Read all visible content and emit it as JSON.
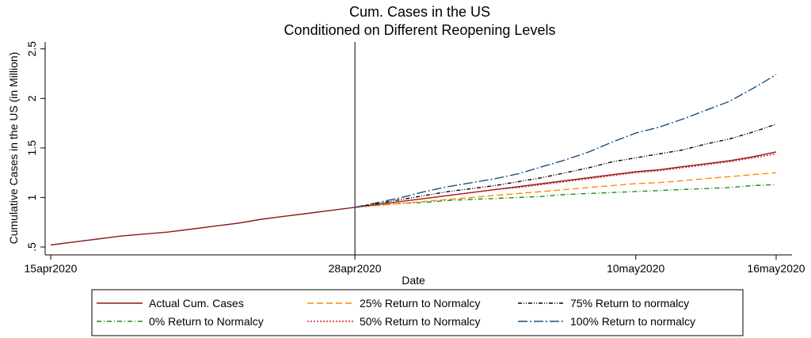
{
  "chart_data": {
    "type": "line",
    "title": [
      "Cum. Cases in the US",
      "Conditioned on Different Reopening Levels"
    ],
    "xlabel": "Date",
    "ylabel": "Cumulative Cases in the US (in Million)",
    "x": [
      "2020-04-15",
      "2020-04-16",
      "2020-04-17",
      "2020-04-18",
      "2020-04-19",
      "2020-04-20",
      "2020-04-21",
      "2020-04-22",
      "2020-04-23",
      "2020-04-24",
      "2020-04-25",
      "2020-04-26",
      "2020-04-27",
      "2020-04-28",
      "2020-04-29",
      "2020-04-30",
      "2020-05-01",
      "2020-05-02",
      "2020-05-03",
      "2020-05-04",
      "2020-05-05",
      "2020-05-06",
      "2020-05-07",
      "2020-05-08",
      "2020-05-09",
      "2020-05-10",
      "2020-05-11",
      "2020-05-12",
      "2020-05-13",
      "2020-05-14",
      "2020-05-15",
      "2020-05-16"
    ],
    "xlim": [
      "2020-04-15",
      "2020-05-16"
    ],
    "xticks": [
      {
        "value": "2020-04-15",
        "label": "15apr2020"
      },
      {
        "value": "2020-04-28",
        "label": "28apr2020"
      },
      {
        "value": "2020-05-10",
        "label": "10may2020"
      },
      {
        "value": "2020-05-16",
        "label": "16may2020"
      }
    ],
    "xline": "2020-04-28",
    "ylim": [
      0.42,
      2.57
    ],
    "yticks": [
      {
        "value": 0.5,
        "label": ".5"
      },
      1,
      1.5,
      2,
      2.5
    ],
    "series": [
      {
        "name": "Actual Cum. Cases",
        "color": "#8b1a1a",
        "dash": "none",
        "values": [
          0.52,
          0.55,
          0.58,
          0.61,
          0.63,
          0.65,
          0.68,
          0.71,
          0.74,
          0.78,
          0.81,
          0.84,
          0.87,
          0.9,
          0.93,
          0.96,
          0.99,
          1.02,
          1.05,
          1.08,
          1.11,
          1.14,
          1.17,
          1.2,
          1.23,
          1.26,
          1.28,
          1.31,
          1.34,
          1.37,
          1.41,
          1.46
        ]
      },
      {
        "name": "0% Return to Normalcy",
        "color": "#1a8a1a",
        "dash": "6 3 1 3",
        "values": [
          null,
          null,
          null,
          null,
          null,
          null,
          null,
          null,
          null,
          null,
          null,
          null,
          null,
          0.9,
          0.92,
          0.94,
          0.95,
          0.97,
          0.98,
          0.99,
          1.0,
          1.01,
          1.03,
          1.04,
          1.05,
          1.06,
          1.07,
          1.08,
          1.09,
          1.1,
          1.12,
          1.13
        ]
      },
      {
        "name": "25% Return to Normalcy",
        "color": "#ff8c00",
        "dash": "8 4",
        "values": [
          null,
          null,
          null,
          null,
          null,
          null,
          null,
          null,
          null,
          null,
          null,
          null,
          null,
          0.9,
          0.92,
          0.94,
          0.96,
          0.98,
          1.0,
          1.02,
          1.04,
          1.06,
          1.08,
          1.1,
          1.12,
          1.14,
          1.15,
          1.17,
          1.19,
          1.21,
          1.23,
          1.25
        ]
      },
      {
        "name": "50% Return to Normalcy",
        "color": "#e0141e",
        "dash": "2 2",
        "values": [
          null,
          null,
          null,
          null,
          null,
          null,
          null,
          null,
          null,
          null,
          null,
          null,
          null,
          0.9,
          0.93,
          0.96,
          0.99,
          1.02,
          1.05,
          1.08,
          1.1,
          1.13,
          1.16,
          1.19,
          1.22,
          1.25,
          1.27,
          1.3,
          1.33,
          1.36,
          1.4,
          1.44
        ]
      },
      {
        "name": "75% Return to normalcy",
        "color": "#000000",
        "dash": "5 2 1 2 1 2",
        "values": [
          null,
          null,
          null,
          null,
          null,
          null,
          null,
          null,
          null,
          null,
          null,
          null,
          null,
          0.9,
          0.94,
          0.98,
          1.02,
          1.06,
          1.09,
          1.12,
          1.16,
          1.2,
          1.25,
          1.3,
          1.36,
          1.4,
          1.44,
          1.48,
          1.54,
          1.59,
          1.66,
          1.74
        ]
      },
      {
        "name": "100% Return to normalcy",
        "color": "#1f4e79",
        "dash": "12 3 2 3",
        "values": [
          null,
          null,
          null,
          null,
          null,
          null,
          null,
          null,
          null,
          null,
          null,
          null,
          null,
          0.9,
          0.95,
          1.0,
          1.06,
          1.11,
          1.15,
          1.19,
          1.24,
          1.31,
          1.38,
          1.46,
          1.56,
          1.65,
          1.71,
          1.79,
          1.88,
          1.97,
          2.1,
          2.24
        ]
      }
    ]
  }
}
